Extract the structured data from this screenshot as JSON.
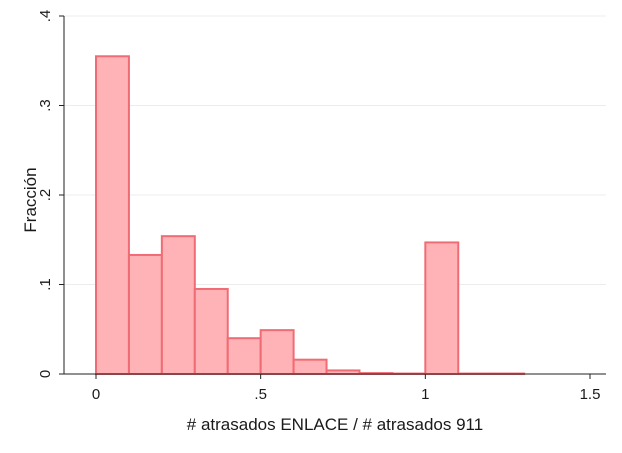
{
  "chart_data": {
    "type": "bar",
    "subtype": "histogram",
    "xlabel": "# atrasados ENLACE / # atrasados 911",
    "ylabel": "Fracción",
    "xlim": [
      0,
      1.5
    ],
    "ylim": [
      0,
      0.4
    ],
    "x_ticks": [
      {
        "value": 0,
        "label": "0"
      },
      {
        "value": 0.5,
        "label": ".5"
      },
      {
        "value": 1,
        "label": "1"
      },
      {
        "value": 1.5,
        "label": "1.5"
      }
    ],
    "y_ticks": [
      {
        "value": 0,
        "label": "0"
      },
      {
        "value": 0.1,
        "label": ".1"
      },
      {
        "value": 0.2,
        "label": ".2"
      },
      {
        "value": 0.3,
        "label": ".3"
      },
      {
        "value": 0.4,
        "label": ".4"
      }
    ],
    "grid": true,
    "bar_fill": "#ffb3b6",
    "bar_stroke": "#f06c74",
    "bins": [
      {
        "x0": 0.0,
        "x1": 0.1,
        "value": 0.355
      },
      {
        "x0": 0.1,
        "x1": 0.2,
        "value": 0.133
      },
      {
        "x0": 0.2,
        "x1": 0.3,
        "value": 0.154
      },
      {
        "x0": 0.3,
        "x1": 0.4,
        "value": 0.095
      },
      {
        "x0": 0.4,
        "x1": 0.5,
        "value": 0.04
      },
      {
        "x0": 0.5,
        "x1": 0.6,
        "value": 0.049
      },
      {
        "x0": 0.6,
        "x1": 0.7,
        "value": 0.016
      },
      {
        "x0": 0.7,
        "x1": 0.8,
        "value": 0.004
      },
      {
        "x0": 0.8,
        "x1": 0.9,
        "value": 0.001
      },
      {
        "x0": 0.9,
        "x1": 1.0,
        "value": 0.0005
      },
      {
        "x0": 1.0,
        "x1": 1.1,
        "value": 0.147
      },
      {
        "x0": 1.1,
        "x1": 1.2,
        "value": 0.0005
      },
      {
        "x0": 1.2,
        "x1": 1.3,
        "value": 0.0005
      }
    ]
  }
}
